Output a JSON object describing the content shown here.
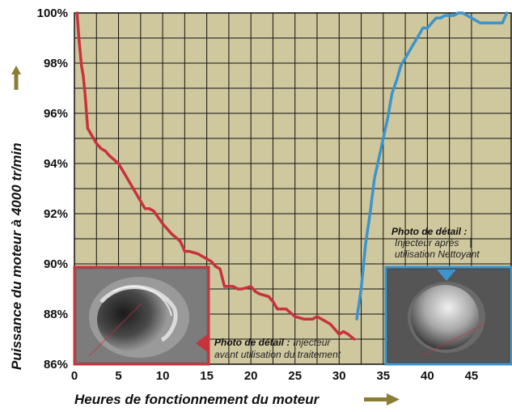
{
  "chart_data": {
    "type": "line",
    "xlabel": "Heures de fonctionnement du moteur",
    "ylabel": "Puissance du moteur à 4000 tr/min",
    "xlim": [
      0,
      49.5
    ],
    "ylim": [
      86,
      100
    ],
    "x_ticks": [
      0,
      5,
      10,
      15,
      20,
      25,
      30,
      35,
      40,
      45
    ],
    "x_tick_labels": [
      "0",
      "5",
      "10",
      "15",
      "20",
      "25",
      "30",
      "35",
      "40",
      "45"
    ],
    "y_ticks": [
      86,
      88,
      90,
      92,
      94,
      96,
      98,
      100
    ],
    "y_tick_labels": [
      "86%",
      "88%",
      "90%",
      "92%",
      "94%",
      "96%",
      "98%",
      "100%"
    ],
    "grid": true,
    "background_color": "#cfc79e",
    "series": [
      {
        "color": "#c8323c",
        "x": [
          0.3,
          0.5,
          0.8,
          1.0,
          1.2,
          1.5,
          2.0,
          2.5,
          3.0,
          3.5,
          4.0,
          5.0,
          6.0,
          7.0,
          8.0,
          8.5,
          9.0,
          10.0,
          11.0,
          12.0,
          12.5,
          13.0,
          14.0,
          15.0,
          15.5,
          16.0,
          16.5,
          17.0,
          18.0,
          18.5,
          19.0,
          20.0,
          20.5,
          21.0,
          22.0,
          22.5,
          23.0,
          24.0,
          25.0,
          26.0,
          27.0,
          27.5,
          28.0,
          29.0,
          30.0,
          30.5,
          31.0,
          31.7
        ],
        "y": [
          100.0,
          99.0,
          97.9,
          97.5,
          96.8,
          95.4,
          95.1,
          94.8,
          94.6,
          94.5,
          94.3,
          94.0,
          93.4,
          92.8,
          92.2,
          92.2,
          92.1,
          91.6,
          91.2,
          90.9,
          90.5,
          90.5,
          90.4,
          90.2,
          90.1,
          89.9,
          89.8,
          89.1,
          89.1,
          89.0,
          89.0,
          89.1,
          88.9,
          88.8,
          88.7,
          88.5,
          88.2,
          88.2,
          87.9,
          87.8,
          87.8,
          87.9,
          87.8,
          87.6,
          87.2,
          87.3,
          87.2,
          87.0
        ]
      },
      {
        "color": "#3b94cc",
        "x": [
          32.0,
          32.5,
          33.0,
          33.5,
          34.0,
          34.5,
          35.0,
          35.5,
          36.0,
          36.5,
          37.0,
          37.5,
          38.0,
          38.5,
          39.0,
          39.5,
          40.0,
          40.5,
          41.0,
          41.5,
          42.0,
          42.5,
          43.0,
          43.5,
          44.0,
          44.5,
          45.0,
          45.5,
          46.0,
          46.5,
          47.0,
          47.5,
          48.0,
          48.5,
          49.0
        ],
        "y": [
          87.8,
          89.0,
          90.8,
          92.0,
          93.4,
          94.2,
          95.0,
          95.8,
          96.8,
          97.3,
          97.9,
          98.2,
          98.5,
          98.8,
          99.1,
          99.4,
          99.4,
          99.6,
          99.8,
          99.8,
          99.9,
          99.9,
          99.9,
          100.0,
          100.0,
          99.9,
          99.8,
          99.7,
          99.6,
          99.6,
          99.6,
          99.6,
          99.6,
          99.6,
          100.0
        ]
      }
    ],
    "annotations": {
      "left": {
        "title": "Photo de détail :",
        "text_inline": "Injecteur",
        "text_line2": "avant utilisation du traitement"
      },
      "right": {
        "title": "Photo de détail :",
        "text_line2": "Injecteur après",
        "text_line3": "utilisation Nettoyant"
      }
    },
    "colors": {
      "before": "#c8323c",
      "after": "#3b94cc",
      "arrow": "#8a7e35"
    }
  }
}
